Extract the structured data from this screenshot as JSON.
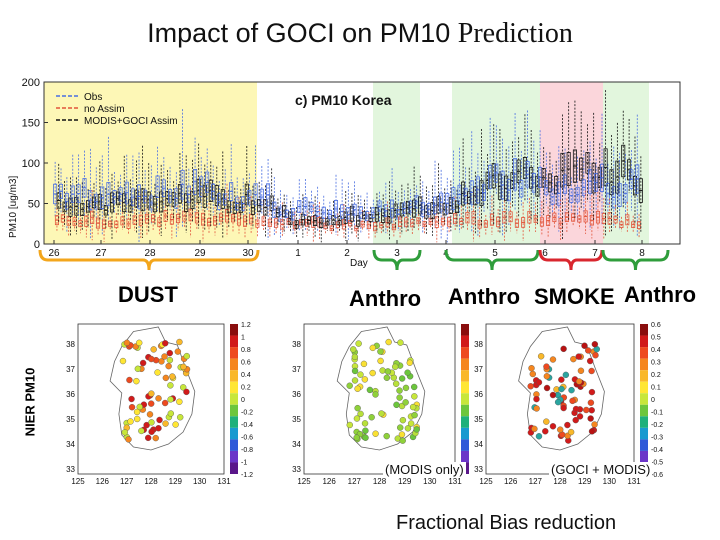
{
  "title": {
    "main": "Impact of GOCI on PM10",
    "tail": "Prediction"
  },
  "panel_title": "c) PM10 Korea",
  "colors": {
    "obs": "#4a6ee0",
    "no_assim": "#e2543a",
    "assim": "#111111",
    "dust": "#fdf7b6",
    "anthro": "#e2f6dd",
    "smoke": "#fbd6db",
    "dust_label": "#f3a61c",
    "anthro_label": "#2f9d3b",
    "smoke_label": "#d9262e"
  },
  "chart_data": [
    {
      "type": "box",
      "title": "c) PM10 Korea",
      "xlabel": "Day",
      "ylabel": "PM10 [ug/m3]",
      "ylim": [
        0,
        200
      ],
      "xlim": [
        25.6,
        8.9
      ],
      "yticks": [
        0,
        50,
        100,
        150,
        200
      ],
      "xticks": [
        "26",
        "27",
        "28",
        "29",
        "30",
        "1",
        "2",
        "3",
        "4",
        "5",
        "6",
        "7",
        "8"
      ],
      "legend": {
        "position": "top-left",
        "entries": [
          "Obs",
          "no Assim",
          "MODIS+GOCI Assim"
        ]
      },
      "series": [
        {
          "name": "Obs",
          "approx_medians": [
            62,
            58,
            60,
            68,
            58,
            40,
            38,
            42,
            50,
            78,
            70,
            70,
            68
          ]
        },
        {
          "name": "no Assim",
          "approx_medians": [
            30,
            28,
            30,
            32,
            30,
            25,
            22,
            25,
            28,
            30,
            28,
            30,
            28
          ]
        },
        {
          "name": "MODIS+GOCI Assim",
          "approx_medians": [
            52,
            50,
            55,
            60,
            52,
            30,
            32,
            38,
            48,
            80,
            82,
            95,
            78
          ]
        }
      ],
      "episodes": [
        {
          "label": "DUST",
          "from_day": "26",
          "to_day": "30"
        },
        {
          "label": "Anthro",
          "from_day": "3",
          "to_day": "3"
        },
        {
          "label": "Anthro",
          "from_day": "4",
          "to_day": "6"
        },
        {
          "label": "SMOKE",
          "from_day": "6",
          "to_day": "7"
        },
        {
          "label": "Anthro",
          "from_day": "7",
          "to_day": "8"
        }
      ]
    },
    {
      "type": "scatter",
      "description_label": "NIER PM10",
      "maps": [
        {
          "caption": "",
          "xticks": [
            "125",
            "126",
            "127",
            "128",
            "129",
            "130",
            "131"
          ],
          "yticks": [
            "33",
            "34",
            "35",
            "36",
            "37",
            "38"
          ],
          "colorbar": [
            "1.2",
            "1",
            "0.8",
            "0.6",
            "0.4",
            "0.2",
            "0",
            "-0.2",
            "-0.4",
            "-0.6",
            "-0.8",
            "-1",
            "-1.2"
          ]
        },
        {
          "caption": "(MODIS only)",
          "xticks": [
            "125",
            "126",
            "127",
            "128",
            "129",
            "130",
            "131"
          ],
          "yticks": [
            "33",
            "34",
            "35",
            "36",
            "37",
            "38"
          ],
          "colorbar": []
        },
        {
          "caption": "(GOCI + MODIS)",
          "xticks": [
            "125",
            "126",
            "127",
            "128",
            "129",
            "130",
            "131"
          ],
          "yticks": [
            "33",
            "34",
            "35",
            "36",
            "37",
            "38"
          ],
          "colorbar": [
            "0.6",
            "0.5",
            "0.4",
            "0.3",
            "0.2",
            "0.1",
            "0",
            "-0.1",
            "-0.2",
            "-0.3",
            "-0.4",
            "-0.5",
            "-0.6"
          ]
        }
      ]
    }
  ],
  "labels": {
    "dust": "DUST",
    "anthro": "Anthro",
    "smoke": "SMOKE"
  },
  "side_label": "NIER PM10",
  "captions": {
    "modis": "(MODIS only)",
    "goci": "(GOCI + MODIS)"
  },
  "footer": "Fractional Bias reduction"
}
